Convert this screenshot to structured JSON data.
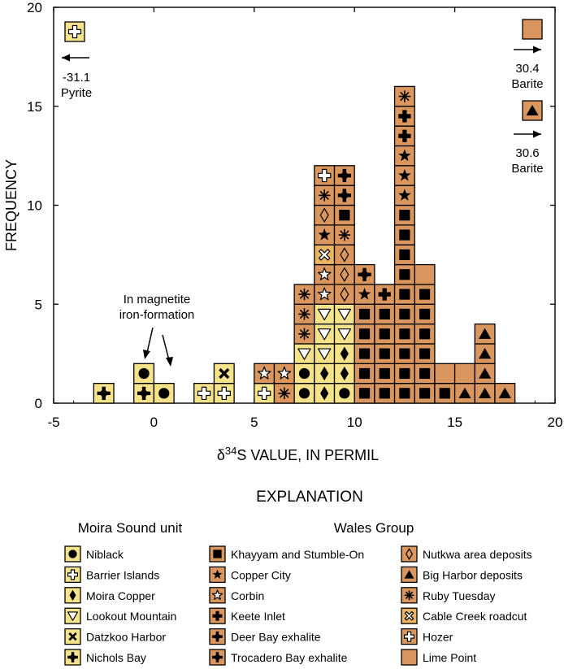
{
  "chart_data": {
    "type": "histogram",
    "xlabel_prefix": "δ",
    "xlabel_sup": "34",
    "xlabel_rest": "S VALUE, IN PERMIL",
    "ylabel": "FREQUENCY",
    "xlim": [
      -5,
      20
    ],
    "ylim": [
      0,
      20
    ],
    "x_ticks": [
      "-5",
      "0",
      "5",
      "10",
      "15",
      "20"
    ],
    "y_ticks": [
      "0",
      "5",
      "10",
      "15",
      "20"
    ],
    "bin_width": 1,
    "color_moira": "#f5e38b",
    "color_wales": "#d9975f",
    "color_cable": "#eab463",
    "samples": [
      {
        "x": -2.5,
        "unit": "nichols_bay"
      },
      {
        "x": -0.5,
        "unit": "nichols_bay"
      },
      {
        "x": -0.5,
        "unit": "niblack"
      },
      {
        "x": 0.5,
        "unit": "niblack"
      },
      {
        "x": 2.5,
        "unit": "barrier_islands"
      },
      {
        "x": 3.5,
        "unit": "barrier_islands"
      },
      {
        "x": 3.5,
        "unit": "datzkoo_harbor"
      },
      {
        "x": 5.5,
        "unit": "barrier_islands"
      },
      {
        "x": 5.5,
        "unit": "corbin"
      },
      {
        "x": 6.5,
        "unit": "ruby_tuesday"
      },
      {
        "x": 6.5,
        "unit": "corbin"
      },
      {
        "x": 7.5,
        "unit": "niblack"
      },
      {
        "x": 7.5,
        "unit": "niblack"
      },
      {
        "x": 7.5,
        "unit": "lookout_mountain"
      },
      {
        "x": 7.5,
        "unit": "ruby_tuesday"
      },
      {
        "x": 7.5,
        "unit": "ruby_tuesday"
      },
      {
        "x": 7.5,
        "unit": "ruby_tuesday"
      },
      {
        "x": 8.5,
        "unit": "moira_copper"
      },
      {
        "x": 8.5,
        "unit": "moira_copper"
      },
      {
        "x": 8.5,
        "unit": "lookout_mountain"
      },
      {
        "x": 8.5,
        "unit": "lookout_mountain"
      },
      {
        "x": 8.5,
        "unit": "lookout_mountain"
      },
      {
        "x": 8.5,
        "unit": "corbin"
      },
      {
        "x": 8.5,
        "unit": "corbin"
      },
      {
        "x": 8.5,
        "unit": "cable_creek"
      },
      {
        "x": 8.5,
        "unit": "copper_city"
      },
      {
        "x": 8.5,
        "unit": "nutkwa"
      },
      {
        "x": 8.5,
        "unit": "ruby_tuesday"
      },
      {
        "x": 8.5,
        "unit": "hozer"
      },
      {
        "x": 9.5,
        "unit": "niblack"
      },
      {
        "x": 9.5,
        "unit": "moira_copper"
      },
      {
        "x": 9.5,
        "unit": "moira_copper"
      },
      {
        "x": 9.5,
        "unit": "lookout_mountain"
      },
      {
        "x": 9.5,
        "unit": "lookout_mountain"
      },
      {
        "x": 9.5,
        "unit": "nutkwa"
      },
      {
        "x": 9.5,
        "unit": "nutkwa"
      },
      {
        "x": 9.5,
        "unit": "nutkwa"
      },
      {
        "x": 9.5,
        "unit": "ruby_tuesday"
      },
      {
        "x": 9.5,
        "unit": "khayyam"
      },
      {
        "x": 9.5,
        "unit": "deer_bay"
      },
      {
        "x": 9.5,
        "unit": "trocadero_bay"
      },
      {
        "x": 10.5,
        "unit": "khayyam"
      },
      {
        "x": 10.5,
        "unit": "khayyam"
      },
      {
        "x": 10.5,
        "unit": "khayyam"
      },
      {
        "x": 10.5,
        "unit": "khayyam"
      },
      {
        "x": 10.5,
        "unit": "khayyam"
      },
      {
        "x": 10.5,
        "unit": "copper_city"
      },
      {
        "x": 10.5,
        "unit": "deer_bay"
      },
      {
        "x": 11.5,
        "unit": "khayyam"
      },
      {
        "x": 11.5,
        "unit": "khayyam"
      },
      {
        "x": 11.5,
        "unit": "khayyam"
      },
      {
        "x": 11.5,
        "unit": "khayyam"
      },
      {
        "x": 11.5,
        "unit": "khayyam"
      },
      {
        "x": 11.5,
        "unit": "keete_inlet"
      },
      {
        "x": 12.5,
        "unit": "khayyam"
      },
      {
        "x": 12.5,
        "unit": "khayyam"
      },
      {
        "x": 12.5,
        "unit": "khayyam"
      },
      {
        "x": 12.5,
        "unit": "khayyam"
      },
      {
        "x": 12.5,
        "unit": "khayyam"
      },
      {
        "x": 12.5,
        "unit": "khayyam"
      },
      {
        "x": 12.5,
        "unit": "khayyam"
      },
      {
        "x": 12.5,
        "unit": "khayyam"
      },
      {
        "x": 12.5,
        "unit": "khayyam"
      },
      {
        "x": 12.5,
        "unit": "khayyam"
      },
      {
        "x": 12.5,
        "unit": "copper_city"
      },
      {
        "x": 12.5,
        "unit": "copper_city"
      },
      {
        "x": 12.5,
        "unit": "copper_city"
      },
      {
        "x": 12.5,
        "unit": "keete_inlet"
      },
      {
        "x": 12.5,
        "unit": "keete_inlet"
      },
      {
        "x": 12.5,
        "unit": "ruby_tuesday"
      },
      {
        "x": 13.5,
        "unit": "khayyam"
      },
      {
        "x": 13.5,
        "unit": "khayyam"
      },
      {
        "x": 13.5,
        "unit": "khayyam"
      },
      {
        "x": 13.5,
        "unit": "khayyam"
      },
      {
        "x": 13.5,
        "unit": "khayyam"
      },
      {
        "x": 13.5,
        "unit": "khayyam"
      },
      {
        "x": 13.5,
        "unit": "lime_point"
      },
      {
        "x": 14.5,
        "unit": "khayyam"
      },
      {
        "x": 14.5,
        "unit": "lime_point"
      },
      {
        "x": 15.5,
        "unit": "big_harbor"
      },
      {
        "x": 15.5,
        "unit": "lime_point"
      },
      {
        "x": 16.5,
        "unit": "big_harbor"
      },
      {
        "x": 16.5,
        "unit": "big_harbor"
      },
      {
        "x": 16.5,
        "unit": "big_harbor"
      },
      {
        "x": 16.5,
        "unit": "big_harbor"
      },
      {
        "x": 17.5,
        "unit": "big_harbor"
      }
    ],
    "offscale": [
      {
        "side": "left",
        "value": "-31.1",
        "mineral": "Pyrite",
        "unit": "barrier_islands"
      },
      {
        "side": "right",
        "value": "30.4",
        "mineral": "Barite",
        "unit": "lime_point"
      },
      {
        "side": "right",
        "value": "30.6",
        "mineral": "Barite",
        "unit": "big_harbor"
      }
    ],
    "annotation": {
      "line1": "In magnetite",
      "line2": "iron-formation"
    }
  },
  "legend": {
    "title": "EXPLANATION",
    "groups": [
      {
        "title": "Moira Sound unit",
        "columns": [
          [
            {
              "id": "niblack",
              "label": "Niblack",
              "symbol": "circle-icon"
            },
            {
              "id": "barrier_islands",
              "label": "Barrier Islands",
              "symbol": "open-cross-icon"
            },
            {
              "id": "moira_copper",
              "label": "Moira Copper",
              "symbol": "diamond-icon"
            },
            {
              "id": "lookout_mountain",
              "label": "Lookout Mountain",
              "symbol": "open-triangle-down-icon"
            },
            {
              "id": "datzkoo_harbor",
              "label": "Datzkoo Harbor",
              "symbol": "x-icon"
            },
            {
              "id": "nichols_bay",
              "label": "Nichols Bay",
              "symbol": "cross-diamond-icon"
            }
          ]
        ]
      },
      {
        "title": "Wales Group",
        "columns": [
          [
            {
              "id": "khayyam",
              "label": "Khayyam and Stumble-On",
              "symbol": "square-icon"
            },
            {
              "id": "copper_city",
              "label": "Copper City",
              "symbol": "star-icon"
            },
            {
              "id": "corbin",
              "label": "Corbin",
              "symbol": "open-star-icon"
            },
            {
              "id": "keete_inlet",
              "label": "Keete Inlet",
              "symbol": "cross-icon"
            },
            {
              "id": "deer_bay",
              "label": "Deer Bay exhalite",
              "symbol": "cross-diamond-icon"
            },
            {
              "id": "trocadero_bay",
              "label": "Trocadero Bay exhalite",
              "symbol": "cross-diamond-icon"
            }
          ],
          [
            {
              "id": "nutkwa",
              "label": "Nutkwa area deposits",
              "symbol": "open-diamond-icon"
            },
            {
              "id": "big_harbor",
              "label": "Big Harbor deposits",
              "symbol": "triangle-icon"
            },
            {
              "id": "ruby_tuesday",
              "label": "Ruby Tuesday",
              "symbol": "asterisk-icon"
            },
            {
              "id": "cable_creek",
              "label": "Cable Creek roadcut",
              "symbol": "open-x-icon"
            },
            {
              "id": "hozer",
              "label": "Hozer",
              "symbol": "open-cross-icon"
            },
            {
              "id": "lime_point",
              "label": "Lime Point",
              "symbol": "none"
            }
          ]
        ]
      }
    ]
  }
}
